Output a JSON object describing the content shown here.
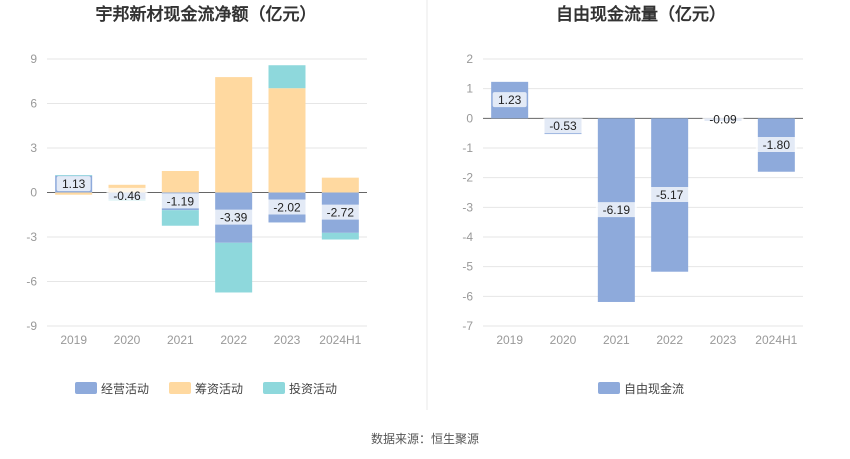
{
  "source_text": "数据来源：恒生聚源",
  "chart_data": [
    {
      "type": "bar",
      "stacked": true,
      "title": "宇邦新材现金流净额（亿元）",
      "categories": [
        "2019",
        "2020",
        "2021",
        "2022",
        "2023",
        "2024H1"
      ],
      "ylim": [
        -9,
        9
      ],
      "yticks": [
        -9,
        -6,
        -3,
        0,
        3,
        6,
        9
      ],
      "grid": true,
      "legend_position": "bottom",
      "series": [
        {
          "name": "经营活动",
          "color": "#8eaadb",
          "values": [
            1.13,
            -0.46,
            -1.19,
            -3.39,
            -2.02,
            -2.72
          ],
          "labels": [
            "1.13",
            "-0.46",
            "-1.19",
            "-3.39",
            "-2.02",
            "-2.72"
          ]
        },
        {
          "name": "筹资活动",
          "color": "#ffd9a0",
          "values": [
            -0.15,
            0.52,
            1.45,
            7.78,
            7.03,
            1.0
          ]
        },
        {
          "name": "投资活动",
          "color": "#8ed8dc",
          "values": [
            0.05,
            -0.1,
            -1.05,
            -3.35,
            1.55,
            -0.45
          ]
        }
      ]
    },
    {
      "type": "bar",
      "title": "自由现金流量（亿元）",
      "categories": [
        "2019",
        "2020",
        "2021",
        "2022",
        "2023",
        "2024H1"
      ],
      "ylim": [
        -7,
        2
      ],
      "yticks": [
        -7,
        -6,
        -5,
        -4,
        -3,
        -2,
        -1,
        0,
        1,
        2
      ],
      "grid": true,
      "legend_position": "bottom",
      "series": [
        {
          "name": "自由现金流",
          "color": "#8eaadb",
          "values": [
            1.23,
            -0.53,
            -6.19,
            -5.17,
            -0.09,
            -1.8
          ],
          "labels": [
            "1.23",
            "-0.53",
            "-6.19",
            "-5.17",
            "-0.09",
            "-1.80"
          ]
        }
      ]
    }
  ]
}
